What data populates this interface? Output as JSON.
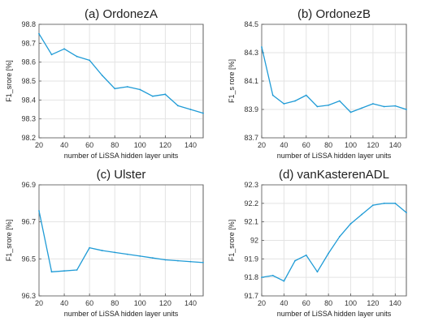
{
  "chart_data": [
    {
      "type": "line",
      "title": "(a) OrdonezA",
      "xlabel": "number of LiSSA hidden layer units",
      "ylabel": "F1_srore [%]",
      "xlim": [
        20,
        150
      ],
      "ylim": [
        98.2,
        98.8
      ],
      "xticks": [
        "20",
        "40",
        "60",
        "80",
        "100",
        "120",
        "140"
      ],
      "yticks": [
        "98.2",
        "98.3",
        "98.4",
        "98.5",
        "98.6",
        "98.7",
        "98.8"
      ],
      "grid": true,
      "x": [
        20,
        30,
        40,
        50,
        60,
        70,
        80,
        90,
        100,
        110,
        120,
        130,
        140,
        150
      ],
      "values": [
        98.75,
        98.64,
        98.67,
        98.63,
        98.61,
        98.53,
        98.46,
        98.47,
        98.455,
        98.42,
        98.43,
        98.37,
        98.35,
        98.33
      ]
    },
    {
      "type": "line",
      "title": "(b) OrdonezB",
      "xlabel": "number of LiSSA hidden layer units",
      "ylabel": "F1_s rore [%]",
      "xlim": [
        20,
        150
      ],
      "ylim": [
        83.7,
        84.5
      ],
      "xticks": [
        "20",
        "40",
        "60",
        "80",
        "100",
        "120",
        "140"
      ],
      "yticks": [
        "83.7",
        "83.9",
        "84.1",
        "84.3",
        "84.5"
      ],
      "grid": true,
      "x": [
        20,
        30,
        40,
        50,
        60,
        70,
        80,
        90,
        100,
        110,
        120,
        130,
        140,
        150
      ],
      "values": [
        84.34,
        84.0,
        83.94,
        83.96,
        84.0,
        83.92,
        83.93,
        83.96,
        83.88,
        83.91,
        83.94,
        83.92,
        83.925,
        83.9
      ]
    },
    {
      "type": "line",
      "title": "(c) Ulster",
      "xlabel": "number of LiSSA hidden layer units",
      "ylabel": "F1_srore [%]",
      "xlim": [
        20,
        150
      ],
      "ylim": [
        96.3,
        96.9
      ],
      "xticks": [
        "20",
        "40",
        "60",
        "80",
        "100",
        "120",
        "140"
      ],
      "yticks": [
        "96.3",
        "96.5",
        "96.7",
        "96.9"
      ],
      "grid": true,
      "x": [
        20,
        30,
        40,
        50,
        60,
        70,
        80,
        90,
        100,
        110,
        120,
        130,
        140,
        150
      ],
      "values": [
        96.76,
        96.43,
        96.435,
        96.44,
        96.56,
        96.545,
        96.535,
        96.525,
        96.515,
        96.505,
        96.495,
        96.49,
        96.485,
        96.48
      ]
    },
    {
      "type": "line",
      "title": "(d) vanKasterenADL",
      "xlabel": "number of LiSSA hidden layer units",
      "ylabel": "F1_srore [%]",
      "xlim": [
        20,
        150
      ],
      "ylim": [
        91.7,
        92.3
      ],
      "xticks": [
        "20",
        "40",
        "60",
        "80",
        "100",
        "120",
        "140"
      ],
      "yticks": [
        "91.7",
        "91.8",
        "91.9",
        "92",
        "92.1",
        "92.2",
        "92.3"
      ],
      "grid": true,
      "x": [
        20,
        30,
        40,
        50,
        60,
        70,
        80,
        90,
        100,
        110,
        120,
        130,
        140,
        150
      ],
      "values": [
        91.8,
        91.81,
        91.78,
        91.89,
        91.92,
        91.83,
        91.93,
        92.02,
        92.09,
        92.14,
        92.19,
        92.2,
        92.2,
        92.15
      ]
    }
  ],
  "colors": {
    "line": "#1f9bd6",
    "axis": "#555555",
    "text": "#222222"
  }
}
